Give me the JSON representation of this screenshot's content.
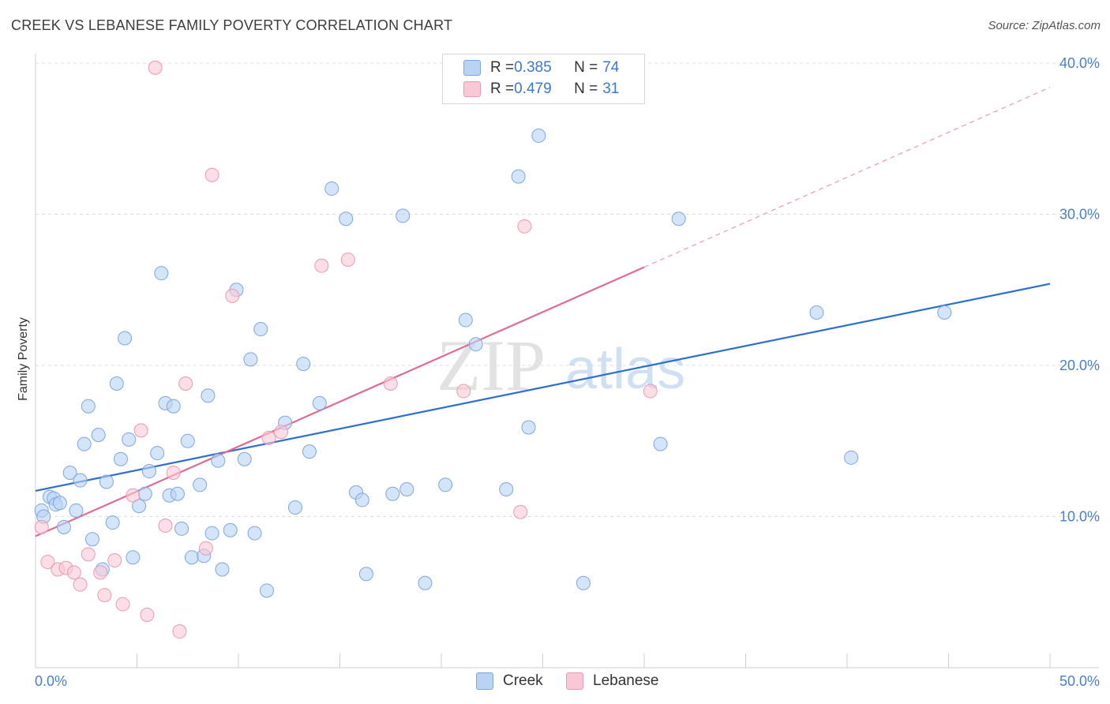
{
  "title": "CREEK VS LEBANESE FAMILY POVERTY CORRELATION CHART",
  "source": "Source: ZipAtlas.com",
  "watermark": {
    "zip": "ZIP",
    "atlas": "atlas"
  },
  "legend_top": {
    "rows": [
      {
        "r_label": "R = ",
        "r_value": "0.385",
        "n_label": "N = ",
        "n_value": "74"
      },
      {
        "r_label": "R = ",
        "r_value": "0.479",
        "n_label": "N = ",
        "n_value": "31"
      }
    ]
  },
  "legend_bottom": [
    "Creek",
    "Lebanese"
  ],
  "colors": {
    "creek_fill": "#b9d3f5",
    "creek_stroke": "#7ea6e0",
    "creek_line": "#2c6fcf",
    "lebanese_fill": "#f8c8d6",
    "lebanese_stroke": "#ea9ab4",
    "lebanese_line": "#e06a92",
    "tick_text": "#4a7fd0",
    "grid": "#dddddd"
  },
  "chart_data": {
    "type": "scatter",
    "title": "CREEK VS LEBANESE FAMILY POVERTY CORRELATION CHART",
    "xlabel": "",
    "ylabel": "Family Poverty",
    "xlim": [
      0,
      50
    ],
    "ylim": [
      0,
      42
    ],
    "x_tick_labels": [
      "0.0%",
      "50.0%"
    ],
    "y_ticks": [
      10,
      20,
      30,
      40
    ],
    "y_tick_labels": [
      "10.0%",
      "20.0%",
      "30.0%",
      "40.0%"
    ],
    "grid": "horizontal dashed",
    "legend_position": "top-center and bottom",
    "series": [
      {
        "name": "Creek",
        "r": 0.385,
        "n": 74,
        "trend": {
          "x": [
            0,
            50
          ],
          "y": [
            11.7,
            25.4
          ]
        },
        "points": [
          [
            0.3,
            10.4
          ],
          [
            0.4,
            10.0
          ],
          [
            0.7,
            11.3
          ],
          [
            0.9,
            11.2
          ],
          [
            1.0,
            10.8
          ],
          [
            1.2,
            10.9
          ],
          [
            1.4,
            9.3
          ],
          [
            1.7,
            12.9
          ],
          [
            2.0,
            10.4
          ],
          [
            2.2,
            12.4
          ],
          [
            2.4,
            14.8
          ],
          [
            2.6,
            17.3
          ],
          [
            2.8,
            8.5
          ],
          [
            3.1,
            15.4
          ],
          [
            3.3,
            6.5
          ],
          [
            3.5,
            12.3
          ],
          [
            3.8,
            9.6
          ],
          [
            4.0,
            18.8
          ],
          [
            4.2,
            13.8
          ],
          [
            4.4,
            21.8
          ],
          [
            4.6,
            15.1
          ],
          [
            4.8,
            7.3
          ],
          [
            5.1,
            10.7
          ],
          [
            5.4,
            11.5
          ],
          [
            5.6,
            13.0
          ],
          [
            6.0,
            14.2
          ],
          [
            6.2,
            26.1
          ],
          [
            6.4,
            17.5
          ],
          [
            6.6,
            11.4
          ],
          [
            6.8,
            17.3
          ],
          [
            7.0,
            11.5
          ],
          [
            7.2,
            9.2
          ],
          [
            7.5,
            15.0
          ],
          [
            7.7,
            7.3
          ],
          [
            8.1,
            12.1
          ],
          [
            8.3,
            7.4
          ],
          [
            8.5,
            18.0
          ],
          [
            8.7,
            8.9
          ],
          [
            9.0,
            13.7
          ],
          [
            9.2,
            6.5
          ],
          [
            9.6,
            9.1
          ],
          [
            9.9,
            25.0
          ],
          [
            10.3,
            13.8
          ],
          [
            10.6,
            20.4
          ],
          [
            10.8,
            8.9
          ],
          [
            11.1,
            22.4
          ],
          [
            11.4,
            5.1
          ],
          [
            12.3,
            16.2
          ],
          [
            12.8,
            10.6
          ],
          [
            13.2,
            20.1
          ],
          [
            13.5,
            14.3
          ],
          [
            14.0,
            17.5
          ],
          [
            14.6,
            31.7
          ],
          [
            15.3,
            29.7
          ],
          [
            15.8,
            11.6
          ],
          [
            16.1,
            11.1
          ],
          [
            16.3,
            6.2
          ],
          [
            17.6,
            11.5
          ],
          [
            18.1,
            29.9
          ],
          [
            18.3,
            11.8
          ],
          [
            19.2,
            5.6
          ],
          [
            20.2,
            12.1
          ],
          [
            21.2,
            23.0
          ],
          [
            21.7,
            21.4
          ],
          [
            23.2,
            11.8
          ],
          [
            23.8,
            32.5
          ],
          [
            24.3,
            15.9
          ],
          [
            24.8,
            35.2
          ],
          [
            27.0,
            5.6
          ],
          [
            30.8,
            14.8
          ],
          [
            31.7,
            29.7
          ],
          [
            38.5,
            23.5
          ],
          [
            40.2,
            13.9
          ],
          [
            44.8,
            23.5
          ]
        ]
      },
      {
        "name": "Lebanese",
        "r": 0.479,
        "n": 31,
        "trend": {
          "x": [
            0,
            30
          ],
          "y": [
            8.7,
            26.5
          ]
        },
        "trend_dashed": {
          "x": [
            30,
            50
          ],
          "y": [
            26.5,
            38.4
          ]
        },
        "points": [
          [
            0.3,
            9.3
          ],
          [
            0.6,
            7.0
          ],
          [
            1.1,
            6.5
          ],
          [
            1.5,
            6.6
          ],
          [
            1.9,
            6.3
          ],
          [
            2.2,
            5.5
          ],
          [
            2.6,
            7.5
          ],
          [
            3.2,
            6.3
          ],
          [
            3.4,
            4.8
          ],
          [
            3.9,
            7.1
          ],
          [
            4.3,
            4.2
          ],
          [
            4.8,
            11.4
          ],
          [
            5.2,
            15.7
          ],
          [
            5.5,
            3.5
          ],
          [
            5.9,
            39.7
          ],
          [
            6.4,
            9.4
          ],
          [
            6.8,
            12.9
          ],
          [
            7.1,
            2.4
          ],
          [
            7.4,
            18.8
          ],
          [
            8.4,
            7.9
          ],
          [
            8.7,
            32.6
          ],
          [
            9.7,
            24.6
          ],
          [
            11.5,
            15.2
          ],
          [
            12.1,
            15.6
          ],
          [
            14.1,
            26.6
          ],
          [
            15.4,
            27.0
          ],
          [
            17.5,
            18.8
          ],
          [
            21.1,
            18.3
          ],
          [
            24.1,
            29.2
          ],
          [
            23.9,
            10.3
          ],
          [
            30.3,
            18.3
          ]
        ]
      }
    ]
  }
}
